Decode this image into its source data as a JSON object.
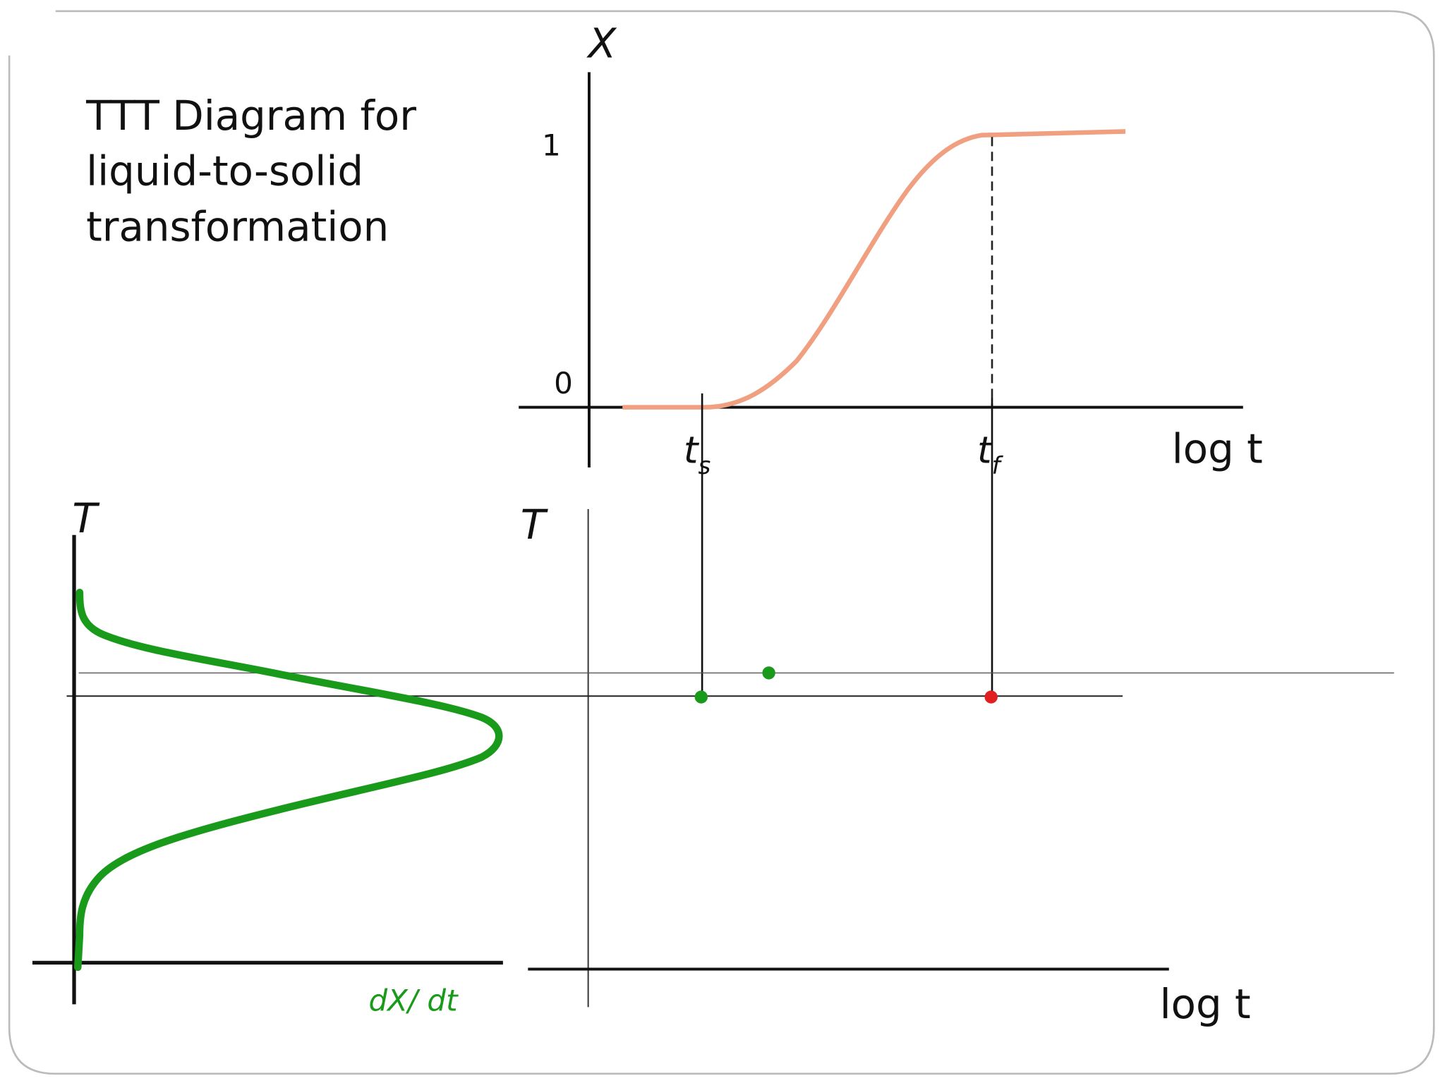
{
  "title": [
    "TTT Diagram for",
    "liquid-to-solid",
    "transformation"
  ],
  "top_plot": {
    "y_label": "X",
    "y_tick_top": "1",
    "y_tick_bottom": "0",
    "x_label": "log t",
    "t_start": {
      "base": "t",
      "sub": "s"
    },
    "t_finish": {
      "base": "t",
      "sub": "f"
    }
  },
  "left_plot": {
    "y_label": "T",
    "x_label": "dX/ dt"
  },
  "ttt_plot": {
    "y_label": "T",
    "x_label": "log t"
  }
}
